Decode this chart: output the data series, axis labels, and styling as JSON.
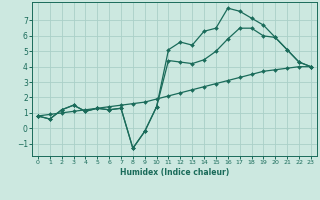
{
  "xlabel": "Humidex (Indice chaleur)",
  "bg_color": "#cce8e0",
  "grid_color": "#aad0c8",
  "line_color": "#1a6b5a",
  "xlim": [
    -0.5,
    23.5
  ],
  "ylim": [
    -1.8,
    8.2
  ],
  "yticks": [
    -1,
    0,
    1,
    2,
    3,
    4,
    5,
    6,
    7
  ],
  "xticks": [
    0,
    1,
    2,
    3,
    4,
    5,
    6,
    7,
    8,
    9,
    10,
    11,
    12,
    13,
    14,
    15,
    16,
    17,
    18,
    19,
    20,
    21,
    22,
    23
  ],
  "line1_x": [
    0,
    1,
    2,
    3,
    4,
    5,
    6,
    7,
    8,
    9,
    10,
    11,
    12,
    13,
    14,
    15,
    16,
    17,
    18,
    19,
    20,
    21,
    22,
    23
  ],
  "line1_y": [
    0.8,
    0.6,
    1.2,
    1.5,
    1.1,
    1.3,
    1.2,
    1.3,
    -1.3,
    -0.2,
    1.4,
    5.1,
    5.6,
    5.4,
    6.3,
    6.5,
    7.8,
    7.6,
    7.15,
    6.7,
    5.9,
    5.1,
    4.3,
    4.0
  ],
  "line2_x": [
    0,
    1,
    2,
    3,
    4,
    5,
    6,
    7,
    8,
    9,
    10,
    11,
    12,
    13,
    14,
    15,
    16,
    17,
    18,
    19,
    20,
    21,
    22,
    23
  ],
  "line2_y": [
    0.8,
    0.6,
    1.2,
    1.5,
    1.1,
    1.3,
    1.2,
    1.3,
    -1.3,
    -0.2,
    1.4,
    4.4,
    4.3,
    4.2,
    4.45,
    5.0,
    5.8,
    6.5,
    6.5,
    6.0,
    5.9,
    5.1,
    4.3,
    4.0
  ],
  "line3_x": [
    0,
    1,
    2,
    3,
    4,
    5,
    6,
    7,
    8,
    9,
    10,
    11,
    12,
    13,
    14,
    15,
    16,
    17,
    18,
    19,
    20,
    21,
    22,
    23
  ],
  "line3_y": [
    0.8,
    0.9,
    1.0,
    1.1,
    1.2,
    1.3,
    1.4,
    1.5,
    1.6,
    1.7,
    1.9,
    2.1,
    2.3,
    2.5,
    2.7,
    2.9,
    3.1,
    3.3,
    3.5,
    3.7,
    3.8,
    3.9,
    4.0,
    4.0
  ],
  "marker_size": 2.0,
  "linewidth": 0.9
}
